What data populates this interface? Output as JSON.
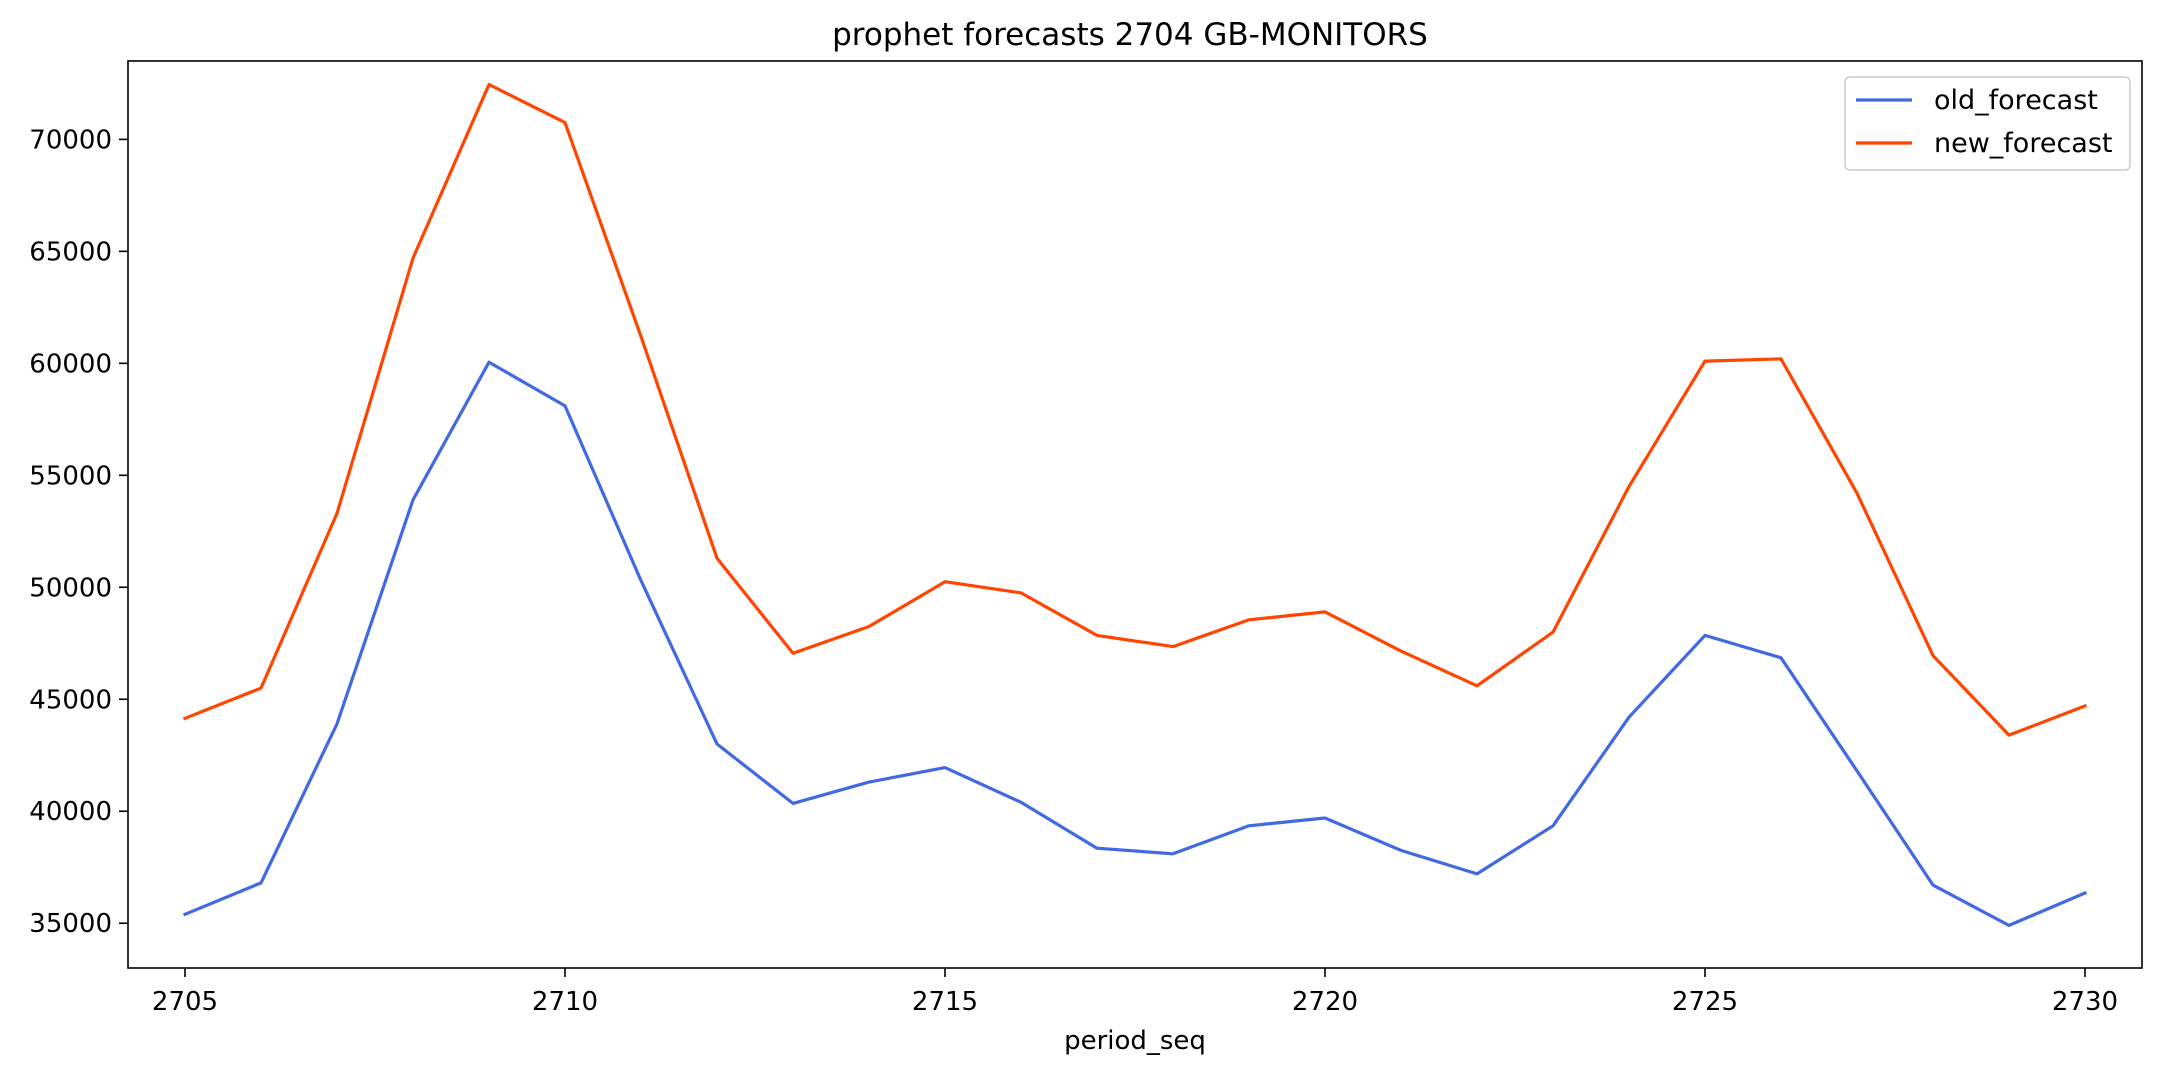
{
  "chart_data": {
    "type": "line",
    "title": "prophet forecasts 2704 GB-MONITORS",
    "xlabel": "period_seq",
    "ylabel": "",
    "x": [
      2705,
      2706,
      2707,
      2708,
      2709,
      2710,
      2711,
      2712,
      2713,
      2714,
      2715,
      2716,
      2717,
      2718,
      2719,
      2720,
      2721,
      2722,
      2723,
      2724,
      2725,
      2726,
      2727,
      2728,
      2729,
      2730
    ],
    "xticks": [
      "2705",
      "2710",
      "2715",
      "2720",
      "2725",
      "2730"
    ],
    "yticks": [
      "35000",
      "40000",
      "45000",
      "50000",
      "55000",
      "60000",
      "65000",
      "70000"
    ],
    "xlim": [
      2704.25,
      2730.75
    ],
    "ylim": [
      33000,
      73500
    ],
    "grid": false,
    "legend_position": "top-right",
    "series": [
      {
        "name": "old_forecast",
        "color": "#4169e1",
        "values": [
          35400,
          36800,
          43900,
          53900,
          60050,
          58100,
          50300,
          43000,
          40350,
          41300,
          41950,
          40400,
          38350,
          38100,
          39350,
          39700,
          38250,
          37200,
          39350,
          44200,
          47850,
          46850,
          41800,
          36700,
          34900,
          36350
        ]
      },
      {
        "name": "new_forecast",
        "color": "#ff4500",
        "values": [
          44150,
          45500,
          53300,
          64700,
          72450,
          70750,
          61200,
          51300,
          47050,
          48250,
          50250,
          49750,
          47850,
          47350,
          48550,
          48900,
          47150,
          45600,
          48000,
          54500,
          60100,
          60200,
          54200,
          46950,
          43400,
          44700
        ]
      }
    ]
  }
}
